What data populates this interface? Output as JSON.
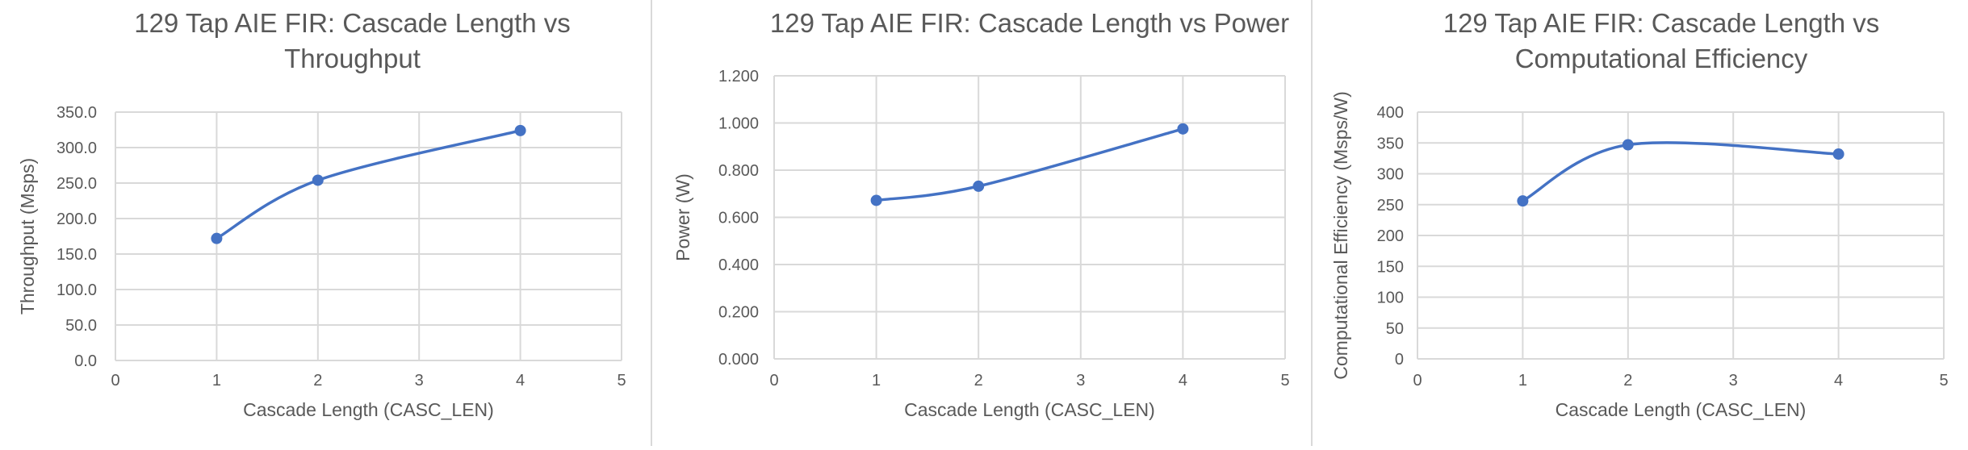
{
  "chart_data": [
    {
      "type": "scatter",
      "title": [
        "129 Tap AIE FIR: Cascade Length vs",
        "Throughput"
      ],
      "xlabel": "Cascade Length (CASC_LEN)",
      "ylabel": "Throughput (Msps)",
      "xlim": [
        0,
        5
      ],
      "ylim": [
        0,
        350
      ],
      "xticks": [
        "0",
        "1",
        "2",
        "3",
        "4",
        "5"
      ],
      "yticks": [
        "0.0",
        "50.0",
        "100.0",
        "150.0",
        "200.0",
        "250.0",
        "300.0",
        "350.0"
      ],
      "grid": true,
      "line_style": "smooth",
      "series": [
        {
          "x": [
            1,
            2,
            4
          ],
          "y": [
            172,
            254,
            324
          ]
        }
      ]
    },
    {
      "type": "scatter",
      "title": [
        "129 Tap AIE FIR: Cascade Length vs Power"
      ],
      "xlabel": "Cascade Length (CASC_LEN)",
      "ylabel": "Power (W)",
      "xlim": [
        0,
        5
      ],
      "ylim": [
        0,
        1.2
      ],
      "xticks": [
        "0",
        "1",
        "2",
        "3",
        "4",
        "5"
      ],
      "yticks": [
        "0.000",
        "0.200",
        "0.400",
        "0.600",
        "0.800",
        "1.000",
        "1.200"
      ],
      "grid": true,
      "line_style": "smooth",
      "series": [
        {
          "x": [
            1,
            2,
            4
          ],
          "y": [
            0.672,
            0.732,
            0.975
          ]
        }
      ]
    },
    {
      "type": "scatter",
      "title": [
        "129 Tap AIE FIR: Cascade Length vs",
        "Computational Efficiency"
      ],
      "xlabel": "Cascade Length (CASC_LEN)",
      "ylabel": "Computational Efficiency (Msps/W)",
      "xlim": [
        0,
        5
      ],
      "ylim": [
        0,
        400
      ],
      "xticks": [
        "0",
        "1",
        "2",
        "3",
        "4",
        "5"
      ],
      "yticks": [
        "0",
        "50",
        "100",
        "150",
        "200",
        "250",
        "300",
        "350",
        "400"
      ],
      "grid": true,
      "line_style": "smooth",
      "series": [
        {
          "x": [
            1,
            2,
            4
          ],
          "y": [
            256,
            347,
            332
          ]
        }
      ]
    }
  ],
  "colors": {
    "series": "#4472c4",
    "grid": "#d9d9d9",
    "text": "#595959",
    "title": "#595959"
  }
}
